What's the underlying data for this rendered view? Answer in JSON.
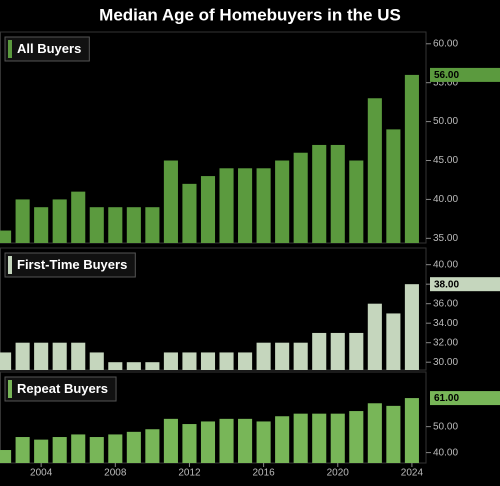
{
  "title": "Median Age of Homebuyers in the US",
  "chart_data": [
    {
      "type": "bar",
      "title": "All Buyers",
      "color": "#5b9a3e",
      "x": [
        2002,
        2003,
        2004,
        2005,
        2006,
        2007,
        2008,
        2009,
        2010,
        2011,
        2012,
        2013,
        2014,
        2015,
        2016,
        2017,
        2018,
        2019,
        2020,
        2021,
        2022,
        2023,
        2024
      ],
      "values": [
        36,
        40,
        39,
        40,
        41,
        39,
        39,
        39,
        39,
        45,
        42,
        43,
        44,
        44,
        44,
        45,
        46,
        47,
        47,
        45,
        53,
        49,
        56
      ],
      "value_labels": [
        null,
        null,
        null,
        null,
        null,
        null,
        null,
        null,
        null,
        null,
        null,
        null,
        null,
        null,
        null,
        null,
        null,
        null,
        null,
        null,
        null,
        null,
        "56.00"
      ],
      "xlim": [
        2001.78,
        2024.76
      ],
      "ylim": [
        34.4,
        61
      ],
      "yticks": [
        {
          "value": 35,
          "label": "35.00"
        },
        {
          "value": 40,
          "label": "40.00"
        },
        {
          "value": 45,
          "label": "45.00"
        },
        {
          "value": 50,
          "label": "50.00"
        },
        {
          "value": 55,
          "label": "55.00"
        },
        {
          "value": 60,
          "label": "60.00"
        }
      ]
    },
    {
      "type": "bar",
      "title": "First-Time Buyers",
      "color": "#c5d6bd",
      "x": [
        2002,
        2003,
        2004,
        2005,
        2006,
        2007,
        2008,
        2009,
        2010,
        2011,
        2012,
        2013,
        2014,
        2015,
        2016,
        2017,
        2018,
        2019,
        2020,
        2021,
        2022,
        2023,
        2024
      ],
      "values": [
        31,
        32,
        32,
        32,
        32,
        31,
        30,
        30,
        30,
        31,
        31,
        31,
        31,
        31,
        32,
        32,
        32,
        33,
        33,
        33,
        36,
        35,
        38
      ],
      "value_labels": [
        null,
        null,
        null,
        null,
        null,
        null,
        null,
        null,
        null,
        null,
        null,
        null,
        null,
        null,
        null,
        null,
        null,
        null,
        null,
        null,
        null,
        null,
        "38.00"
      ],
      "xlim": [
        2001.78,
        2024.76
      ],
      "ylim": [
        29.2,
        41.3
      ],
      "yticks": [
        {
          "value": 30,
          "label": "30.00"
        },
        {
          "value": 32,
          "label": "32.00"
        },
        {
          "value": 34,
          "label": "34.00"
        },
        {
          "value": 36,
          "label": "36.00"
        },
        {
          "value": 38,
          "label": "38.00"
        },
        {
          "value": 40,
          "label": "40.00"
        }
      ]
    },
    {
      "type": "bar",
      "title": "Repeat Buyers",
      "color": "#78b658",
      "x": [
        2002,
        2003,
        2004,
        2005,
        2006,
        2007,
        2008,
        2009,
        2010,
        2011,
        2012,
        2013,
        2014,
        2015,
        2016,
        2017,
        2018,
        2019,
        2020,
        2021,
        2022,
        2023,
        2024
      ],
      "values": [
        41,
        46,
        45,
        46,
        47,
        46,
        47,
        48,
        49,
        53,
        51,
        52,
        53,
        53,
        52,
        54,
        55,
        55,
        55,
        56,
        59,
        58,
        61
      ],
      "value_labels": [
        null,
        null,
        null,
        null,
        null,
        null,
        null,
        null,
        null,
        null,
        null,
        null,
        null,
        null,
        null,
        null,
        null,
        null,
        null,
        null,
        null,
        null,
        "61.00"
      ],
      "xlim": [
        2001.78,
        2024.76
      ],
      "ylim": [
        36,
        69.5
      ],
      "yticks": [
        {
          "value": 40,
          "label": "40.00"
        },
        {
          "value": 50,
          "label": "50.00"
        }
      ],
      "xticks": [
        2004,
        2008,
        2012,
        2016,
        2020,
        2024
      ]
    }
  ]
}
